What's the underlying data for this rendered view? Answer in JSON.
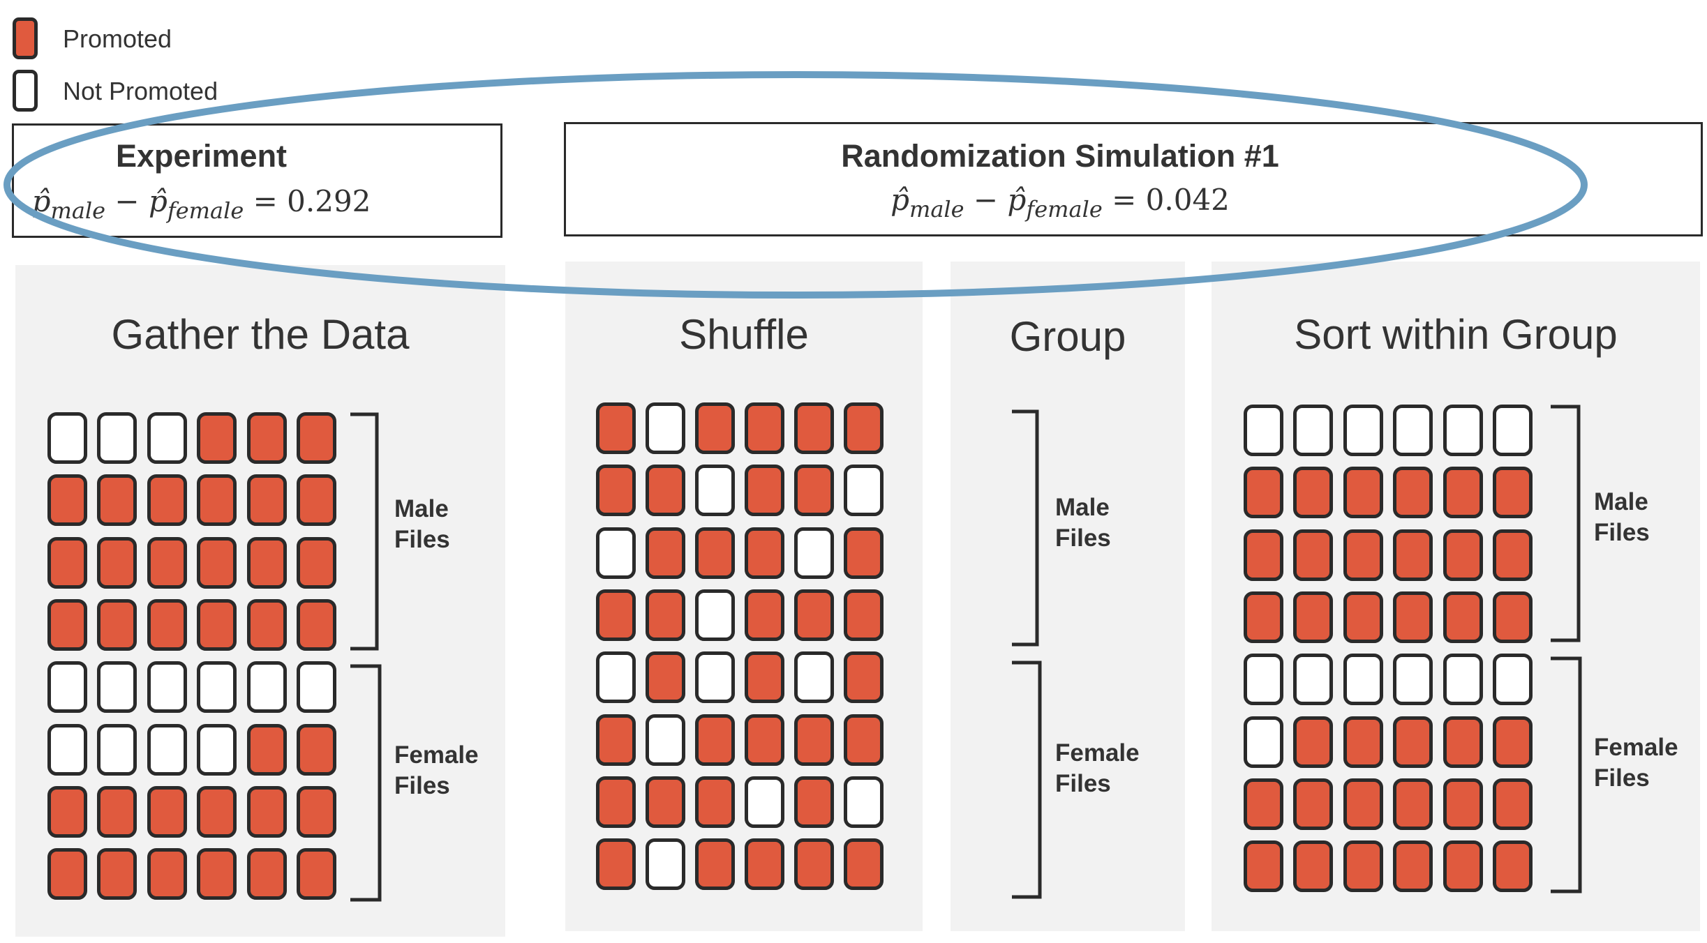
{
  "colors": {
    "promoted": "#e05a3e",
    "not_promoted": "#ffffff",
    "ellipse": "#6a9ec2",
    "panel_bg": "#f2f2f2"
  },
  "legend": {
    "promoted_label": "Promoted",
    "not_promoted_label": "Not Promoted"
  },
  "experiment": {
    "title": "Experiment",
    "sub_male": "male",
    "sub_female": "female",
    "value": "0.292"
  },
  "simulation": {
    "title": "Randomization Simulation #1",
    "sub_male": "male",
    "sub_female": "female",
    "value": "0.042"
  },
  "panels": {
    "gather": {
      "title": "Gather the Data",
      "grid": [
        [
          0,
          0,
          0,
          1,
          1,
          1
        ],
        [
          1,
          1,
          1,
          1,
          1,
          1
        ],
        [
          1,
          1,
          1,
          1,
          1,
          1
        ],
        [
          1,
          1,
          1,
          1,
          1,
          1
        ],
        [
          0,
          0,
          0,
          0,
          0,
          0
        ],
        [
          0,
          0,
          0,
          0,
          1,
          1
        ],
        [
          1,
          1,
          1,
          1,
          1,
          1
        ],
        [
          1,
          1,
          1,
          1,
          1,
          1
        ]
      ]
    },
    "shuffle": {
      "title": "Shuffle",
      "grid": [
        [
          1,
          0,
          1,
          1,
          1,
          1
        ],
        [
          1,
          1,
          0,
          1,
          1,
          0
        ],
        [
          0,
          1,
          1,
          1,
          0,
          1
        ],
        [
          1,
          1,
          0,
          1,
          1,
          1
        ],
        [
          0,
          1,
          0,
          1,
          0,
          1
        ],
        [
          1,
          0,
          1,
          1,
          1,
          1
        ],
        [
          1,
          1,
          1,
          0,
          1,
          0
        ],
        [
          1,
          0,
          1,
          1,
          1,
          1
        ]
      ]
    },
    "group": {
      "title": "Group"
    },
    "sort": {
      "title": "Sort within Group",
      "grid": [
        [
          0,
          0,
          0,
          0,
          0,
          0
        ],
        [
          1,
          1,
          1,
          1,
          1,
          1
        ],
        [
          1,
          1,
          1,
          1,
          1,
          1
        ],
        [
          1,
          1,
          1,
          1,
          1,
          1
        ],
        [
          0,
          0,
          0,
          0,
          0,
          0
        ],
        [
          0,
          1,
          1,
          1,
          1,
          1
        ],
        [
          1,
          1,
          1,
          1,
          1,
          1
        ],
        [
          1,
          1,
          1,
          1,
          1,
          1
        ]
      ]
    }
  },
  "labels": {
    "male_line1": "Male",
    "male_line2": "Files",
    "female_line1": "Female",
    "female_line2": "Files"
  }
}
